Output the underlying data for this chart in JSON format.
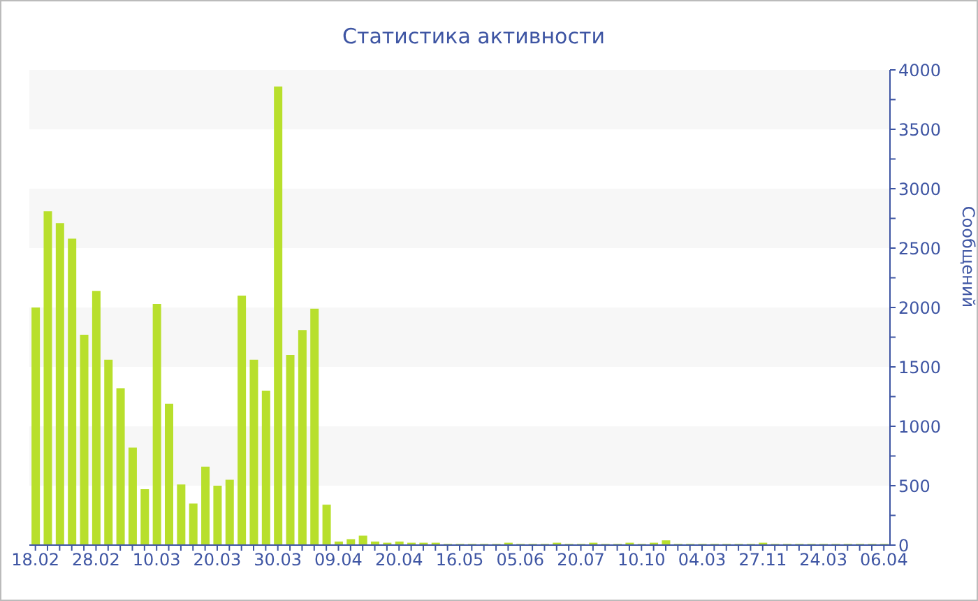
{
  "chart_data": {
    "type": "bar",
    "title": "Статистика активности",
    "ylabel": "Сообщений",
    "categories": [
      "18.02",
      null,
      null,
      null,
      null,
      "28.02",
      null,
      null,
      null,
      null,
      "10.03",
      null,
      null,
      null,
      null,
      "20.03",
      null,
      null,
      null,
      null,
      "30.03",
      null,
      null,
      null,
      null,
      "09.04",
      null,
      null,
      null,
      null,
      "20.04",
      null,
      null,
      null,
      null,
      "16.05",
      null,
      null,
      null,
      null,
      "05.06",
      null,
      null,
      null,
      null,
      "20.07",
      null,
      null,
      null,
      null,
      "10.10",
      null,
      null,
      null,
      null,
      "04.03",
      null,
      null,
      null,
      null,
      "27.11",
      null,
      null,
      null,
      null,
      "24.03",
      null,
      null,
      null,
      null,
      "06.04"
    ],
    "values": [
      2000,
      2810,
      2710,
      2580,
      1770,
      2140,
      1560,
      1320,
      820,
      470,
      2030,
      1190,
      510,
      350,
      660,
      500,
      550,
      2100,
      1560,
      1300,
      3860,
      1600,
      1810,
      1990,
      340,
      30,
      50,
      80,
      30,
      20,
      30,
      20,
      20,
      20,
      10,
      10,
      10,
      10,
      10,
      20,
      10,
      10,
      10,
      20,
      10,
      10,
      20,
      10,
      10,
      20,
      10,
      20,
      40,
      10,
      10,
      10,
      10,
      10,
      10,
      10,
      20,
      10,
      10,
      10,
      10,
      10,
      10,
      10,
      10,
      10,
      10
    ],
    "color": "#b8df2c",
    "ylim": [
      0,
      4000
    ],
    "yticks": [
      0,
      {
        "value": 250,
        "label": null
      },
      500,
      {
        "value": 750,
        "label": null
      },
      1000,
      {
        "value": 1250,
        "label": null
      },
      1500,
      {
        "value": 1750,
        "label": null
      },
      2000,
      {
        "value": 2250,
        "label": null
      },
      2500,
      {
        "value": 2750,
        "label": null
      },
      3000,
      {
        "value": 3250,
        "label": null
      },
      3500,
      {
        "value": 3750,
        "label": null
      },
      4000
    ],
    "bands": [
      {
        "axis": "y",
        "from": 500,
        "to": 1000,
        "color": "#f7f7f7"
      },
      {
        "axis": "y",
        "from": 1500,
        "to": 2000,
        "color": "#f7f7f7"
      },
      {
        "axis": "y",
        "from": 2500,
        "to": 3000,
        "color": "#f7f7f7"
      },
      {
        "axis": "y",
        "from": 3500,
        "to": 4000,
        "color": "#f7f7f7"
      }
    ]
  }
}
